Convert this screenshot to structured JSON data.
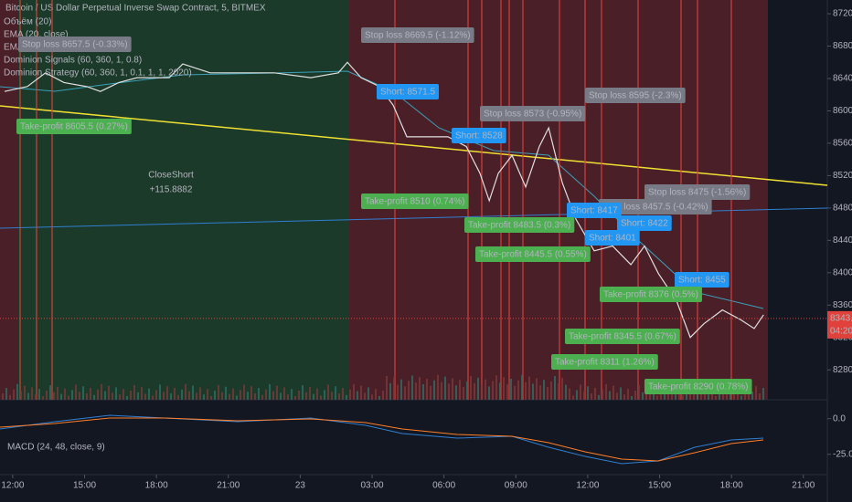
{
  "chart_data": {
    "type": "line",
    "title": "Bitcoin / US Dollar Perpetual Inverse Swap Contract, 5, BITMEX",
    "indicators": [
      "Объём (20)",
      "EMA (20, close)",
      "EMA (20, close)",
      "Dominion Signals (60, 360, 1, 0.8)",
      "Dominion Strategy (60, 360, 1, 0.1, 1, 1, 2020)"
    ],
    "x": [
      -0.34,
      0.61,
      1.37,
      2.14,
      3.09,
      3.66,
      4.43,
      5.19,
      6.53,
      7.1,
      8.24,
      9.39,
      10.92,
      12.44,
      13.59,
      13.97,
      14.54,
      15.31,
      15.88,
      16.45,
      17.21,
      18.17,
      18.93,
      19.5,
      19.89,
      20.27,
      20.84,
      21.41,
      21.98,
      22.37,
      22.94,
      23.51,
      24.27,
      25.04,
      25.8,
      26.37,
      26.95,
      27.71,
      28.28,
      28.85,
      29.62,
      30.38,
      30.95,
      31.34
    ],
    "series": [
      {
        "color": "#e0e0e0",
        "values": [
          8624,
          8630,
          8647,
          8635,
          8630,
          8624,
          8635,
          8641,
          8641,
          8658,
          8647,
          8647,
          8647,
          8641,
          8647,
          8660,
          8641,
          8630,
          8607,
          8568,
          8568,
          8568,
          8556,
          8523,
          8489,
          8523,
          8545,
          8506,
          8556,
          8579,
          8511,
          8466,
          8427,
          8433,
          8410,
          8433,
          8399,
          8365,
          8320,
          8337,
          8354,
          8342,
          8331,
          8348
        ]
      }
    ],
    "xlim": [
      -0.53,
      34.0
    ],
    "xticks": [
      {
        "value": 0,
        "label": "12:00"
      },
      {
        "value": 3,
        "label": "15:00"
      },
      {
        "value": 6,
        "label": "18:00"
      },
      {
        "value": 9,
        "label": "21:00"
      },
      {
        "value": 12,
        "label": "23"
      },
      {
        "value": 15,
        "label": "03:00"
      },
      {
        "value": 18,
        "label": "06:00"
      },
      {
        "value": 21,
        "label": "09:00"
      },
      {
        "value": 24,
        "label": "12:00"
      },
      {
        "value": 27,
        "label": "15:00"
      },
      {
        "value": 30,
        "label": "18:00"
      },
      {
        "value": 33,
        "label": "21:00"
      }
    ],
    "ylim": [
      8243,
      8737
    ],
    "yticks": [
      {
        "value": 8280,
        "label": "8280.0"
      },
      {
        "value": 8320,
        "label": "8320.0"
      },
      {
        "value": 8360,
        "label": "8360.0"
      },
      {
        "value": 8400,
        "label": "8400.0"
      },
      {
        "value": 8440,
        "label": "8440.0"
      },
      {
        "value": 8480,
        "label": "8480.0"
      },
      {
        "value": 8520,
        "label": "8520.0"
      },
      {
        "value": 8560,
        "label": "8560.0"
      },
      {
        "value": 8600,
        "label": "8600.0"
      },
      {
        "value": 8640,
        "label": "8640.0"
      },
      {
        "value": 8680,
        "label": "8680.0"
      },
      {
        "value": 8720,
        "label": "8720.0"
      }
    ],
    "last_price": {
      "value": 8343.5,
      "label": "8343.5"
    },
    "countdown": "04:20",
    "stop_loss_labels": [
      "Stop loss 8657.5 (-0.33%)",
      "Stop loss 8669.5 (-1.12%)",
      "Stop loss 8573 (-0.95%)",
      "Stop loss 8595 (-2.3%)",
      "Stop loss 8457.5 (-0.42%)",
      "Stop loss 8475 (-1.56%)"
    ],
    "short_labels": [
      "Short: 8571.5",
      "Short: 8528",
      "Short: 8417",
      "Short: 8422",
      "Short: 8401",
      "Short: 8455"
    ],
    "take_profit_labels": [
      "Take-profit 8605.5 (0.27%)",
      "Take-profit 8510 (0.74%)",
      "Take-profit 8483.5 (0.3%)",
      "Take-profit 8445.5 (0.55%)",
      "Take-profit 8376 (0.5%)",
      "Take-profit 8345.5 (0.67%)",
      "Take-profit 8311 (1.26%)",
      "Take-profit 8290 (0.78%)"
    ],
    "close_short": [
      "CloseShort",
      "+115.8882"
    ],
    "macd": {
      "title": "MACD (24, 48, close, 9)",
      "ylim": [
        -38,
        12
      ],
      "yticks": [
        {
          "value": 0,
          "label": "0.0"
        },
        {
          "value": -25,
          "label": "-25.0"
        }
      ]
    }
  }
}
